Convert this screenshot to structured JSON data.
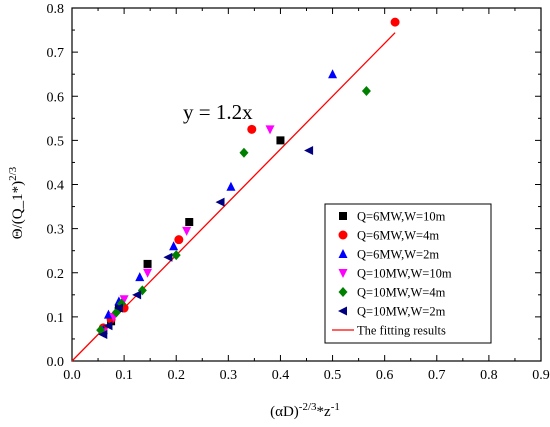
{
  "chart_data": {
    "type": "scatter",
    "xlabel": "(αD)^{-2/3}*z^{-1}",
    "ylabel": "Θ/(Q_1*)^{2/3}",
    "xlim": [
      0.0,
      0.9
    ],
    "ylim": [
      0.0,
      0.8
    ],
    "xticks": [
      0.0,
      0.1,
      0.2,
      0.3,
      0.4,
      0.5,
      0.6,
      0.7,
      0.8,
      0.9
    ],
    "yticks": [
      0.0,
      0.1,
      0.2,
      0.3,
      0.4,
      0.5,
      0.6,
      0.7,
      0.8
    ],
    "grid": false,
    "legend_position": "lower-right",
    "annotation": "y = 1.2x",
    "series": [
      {
        "name": "Q=6MW,W=10m",
        "marker": "square",
        "color": "#000000",
        "points": [
          [
            0.06,
            0.07
          ],
          [
            0.075,
            0.09
          ],
          [
            0.09,
            0.12
          ],
          [
            0.145,
            0.22
          ],
          [
            0.225,
            0.315
          ],
          [
            0.4,
            0.5
          ]
        ]
      },
      {
        "name": "Q=6MW,W=4m",
        "marker": "circle",
        "color": "#ff0000",
        "points": [
          [
            0.06,
            0.075
          ],
          [
            0.075,
            0.095
          ],
          [
            0.1,
            0.12
          ],
          [
            0.205,
            0.275
          ],
          [
            0.345,
            0.525
          ],
          [
            0.62,
            0.768
          ]
        ]
      },
      {
        "name": "Q=6MW,W=2m",
        "marker": "triangle-up",
        "color": "#0000ff",
        "points": [
          [
            0.06,
            0.07
          ],
          [
            0.07,
            0.105
          ],
          [
            0.09,
            0.135
          ],
          [
            0.13,
            0.19
          ],
          [
            0.195,
            0.26
          ],
          [
            0.305,
            0.395
          ],
          [
            0.5,
            0.65
          ]
        ]
      },
      {
        "name": "Q=10MW,W=10m",
        "marker": "triangle-down",
        "color": "#ff00ff",
        "points": [
          [
            0.06,
            0.065
          ],
          [
            0.08,
            0.1
          ],
          [
            0.1,
            0.14
          ],
          [
            0.145,
            0.2
          ],
          [
            0.22,
            0.295
          ],
          [
            0.38,
            0.525
          ]
        ]
      },
      {
        "name": "Q=10MW,W=4m",
        "marker": "diamond",
        "color": "#008000",
        "points": [
          [
            0.055,
            0.07
          ],
          [
            0.085,
            0.11
          ],
          [
            0.095,
            0.13
          ],
          [
            0.135,
            0.16
          ],
          [
            0.2,
            0.24
          ],
          [
            0.33,
            0.472
          ],
          [
            0.565,
            0.612
          ]
        ]
      },
      {
        "name": "Q=10MW,W=2m",
        "marker": "triangle-left",
        "color": "#000080",
        "points": [
          [
            0.06,
            0.06
          ],
          [
            0.07,
            0.08
          ],
          [
            0.09,
            0.12
          ],
          [
            0.125,
            0.15
          ],
          [
            0.185,
            0.235
          ],
          [
            0.285,
            0.36
          ],
          [
            0.455,
            0.477
          ]
        ]
      }
    ],
    "fit_line": {
      "name": "The fitting results",
      "color": "#ff0000",
      "x": [
        0.0,
        0.62
      ],
      "y": [
        0.0,
        0.744
      ]
    }
  }
}
